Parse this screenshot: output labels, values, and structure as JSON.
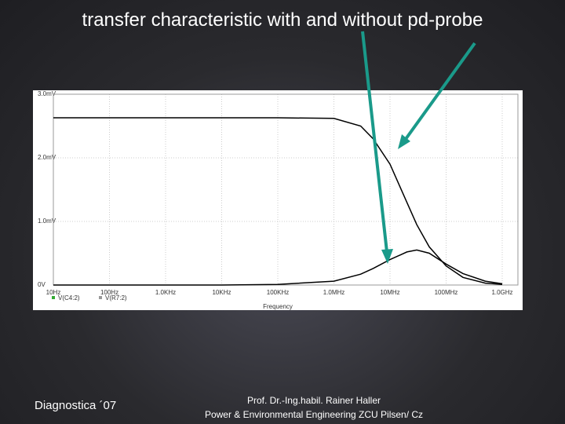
{
  "chart_data": {
    "type": "line",
    "title": "transfer characteristic with and without pd-probe",
    "x_label": "Frequency",
    "log_x": true,
    "grid": true,
    "x": [
      10,
      100,
      1000,
      10000,
      100000,
      1000000,
      3000000,
      5000000,
      10000000,
      20000000,
      30000000,
      50000000,
      100000000,
      200000000,
      500000000,
      1000000000
    ],
    "series": [
      {
        "name": "V(C4:2)",
        "color": "#000000",
        "values": [
          2.63,
          2.63,
          2.63,
          2.63,
          2.63,
          2.62,
          2.5,
          2.3,
          1.9,
          1.3,
          0.95,
          0.6,
          0.3,
          0.12,
          0.03,
          0.01
        ]
      },
      {
        "name": "V(R7:2)",
        "color": "#000000",
        "values": [
          0,
          0,
          0,
          0,
          0.01,
          0.06,
          0.17,
          0.26,
          0.4,
          0.52,
          0.55,
          0.5,
          0.33,
          0.18,
          0.06,
          0.02
        ]
      }
    ],
    "xlim": [
      10,
      1000000000
    ],
    "xticks": [
      {
        "value": 10,
        "label": "10Hz"
      },
      {
        "value": 100,
        "label": "100Hz"
      },
      {
        "value": 1000,
        "label": "1.0KHz"
      },
      {
        "value": 10000,
        "label": "10KHz"
      },
      {
        "value": 100000,
        "label": "100KHz"
      },
      {
        "value": 1000000,
        "label": "1.0MHz"
      },
      {
        "value": 10000000,
        "label": "10MHz"
      },
      {
        "value": 100000000,
        "label": "100MHz"
      },
      {
        "value": 1000000000,
        "label": "1.0GHz"
      }
    ],
    "ylim": [
      0,
      3
    ],
    "yticks": [
      {
        "value": 0,
        "label": "0V"
      },
      {
        "value": 1,
        "label": "1.0mV"
      },
      {
        "value": 2,
        "label": "2.0mV"
      },
      {
        "value": 3,
        "label": "3.0mV"
      }
    ]
  },
  "footer": {
    "left": "Diagnostica ´07",
    "author": "Prof. Dr.-Ing.habil. Rainer Haller",
    "affiliation": "Power & Environmental Engineering ZCU Pilsen/ Cz"
  }
}
